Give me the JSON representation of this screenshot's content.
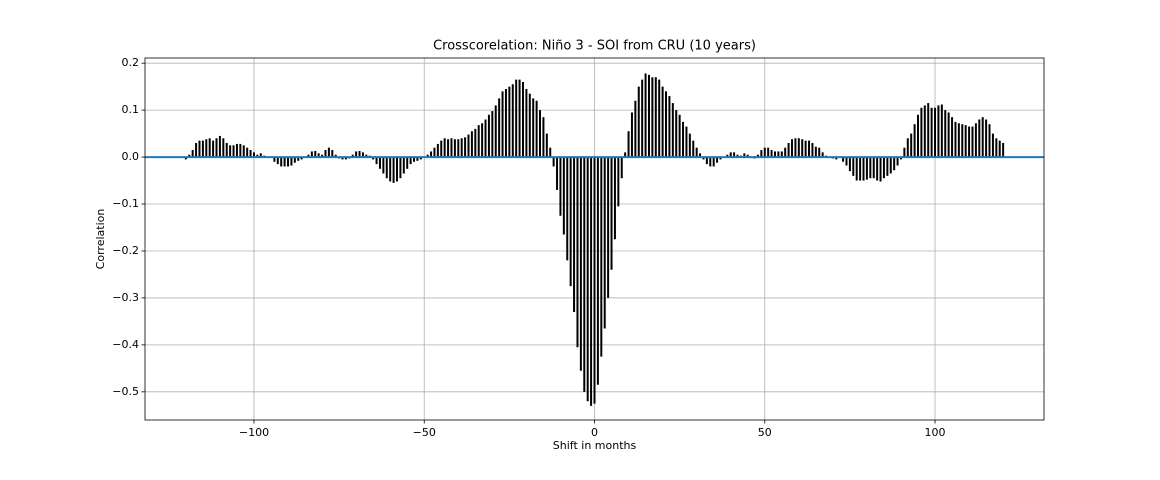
{
  "chart_data": {
    "type": "xcorr",
    "title": "Crosscorelation: Niño 3 - SOI from CRU (10 years)",
    "x_label": "Shift in months",
    "y_label": "Correlation",
    "color": "#000000",
    "baseline_color": "#1f77b4",
    "grid": true,
    "xlim": [
      -132,
      132
    ],
    "ylim": [
      -0.56,
      0.211
    ],
    "xticks": [
      {
        "value": -100,
        "label": "−100"
      },
      {
        "value": -50,
        "label": "−50"
      },
      0,
      50,
      100
    ],
    "yticks": [
      {
        "value": -0.5,
        "label": "−0.5"
      },
      {
        "value": -0.4,
        "label": "−0.4"
      },
      {
        "value": -0.3,
        "label": "−0.3"
      },
      {
        "value": -0.2,
        "label": "−0.2"
      },
      {
        "value": -0.1,
        "label": "−0.1"
      },
      {
        "value": 0,
        "label": "0.0"
      },
      0.1,
      0.2
    ],
    "x": [
      -120,
      -119,
      -118,
      -117,
      -116,
      -115,
      -114,
      -113,
      -112,
      -111,
      -110,
      -109,
      -108,
      -107,
      -106,
      -105,
      -104,
      -103,
      -102,
      -101,
      -100,
      -99,
      -98,
      -97,
      -96,
      -95,
      -94,
      -93,
      -92,
      -91,
      -90,
      -89,
      -88,
      -87,
      -86,
      -85,
      -84,
      -83,
      -82,
      -81,
      -80,
      -79,
      -78,
      -77,
      -76,
      -75,
      -74,
      -73,
      -72,
      -71,
      -70,
      -69,
      -68,
      -67,
      -66,
      -65,
      -64,
      -63,
      -62,
      -61,
      -60,
      -59,
      -58,
      -57,
      -56,
      -55,
      -54,
      -53,
      -52,
      -51,
      -50,
      -49,
      -48,
      -47,
      -46,
      -45,
      -44,
      -43,
      -42,
      -41,
      -40,
      -39,
      -38,
      -37,
      -36,
      -35,
      -34,
      -33,
      -32,
      -31,
      -30,
      -29,
      -28,
      -27,
      -26,
      -25,
      -24,
      -23,
      -22,
      -21,
      -20,
      -19,
      -18,
      -17,
      -16,
      -15,
      -14,
      -13,
      -12,
      -11,
      -10,
      -9,
      -8,
      -7,
      -6,
      -5,
      -4,
      -3,
      -2,
      -1,
      0,
      1,
      2,
      3,
      4,
      5,
      6,
      7,
      8,
      9,
      10,
      11,
      12,
      13,
      14,
      15,
      16,
      17,
      18,
      19,
      20,
      21,
      22,
      23,
      24,
      25,
      26,
      27,
      28,
      29,
      30,
      31,
      32,
      33,
      34,
      35,
      36,
      37,
      38,
      39,
      40,
      41,
      42,
      43,
      44,
      45,
      46,
      47,
      48,
      49,
      50,
      51,
      52,
      53,
      54,
      55,
      56,
      57,
      58,
      59,
      60,
      61,
      62,
      63,
      64,
      65,
      66,
      67,
      68,
      69,
      70,
      71,
      72,
      73,
      74,
      75,
      76,
      77,
      78,
      79,
      80,
      81,
      82,
      83,
      84,
      85,
      86,
      87,
      88,
      89,
      90,
      91,
      92,
      93,
      94,
      95,
      96,
      97,
      98,
      99,
      100,
      101,
      102,
      103,
      104,
      105,
      106,
      107,
      108,
      109,
      110,
      111,
      112,
      113,
      114,
      115,
      116,
      117,
      118,
      119,
      120
    ],
    "values": [
      -0.005,
      0.005,
      0.015,
      0.03,
      0.035,
      0.035,
      0.038,
      0.04,
      0.035,
      0.04,
      0.045,
      0.04,
      0.03,
      0.025,
      0.025,
      0.028,
      0.028,
      0.025,
      0.02,
      0.015,
      0.01,
      0.005,
      0.008,
      0.003,
      0,
      0,
      -0.01,
      -0.015,
      -0.02,
      -0.02,
      -0.02,
      -0.018,
      -0.012,
      -0.008,
      -0.005,
      0,
      0.005,
      0.012,
      0.013,
      0.008,
      0.005,
      0.015,
      0.02,
      0.015,
      0.005,
      -0.003,
      -0.005,
      -0.005,
      -0.003,
      0.005,
      0.012,
      0.013,
      0.01,
      0.005,
      0.003,
      -0.005,
      -0.015,
      -0.025,
      -0.035,
      -0.045,
      -0.052,
      -0.055,
      -0.052,
      -0.045,
      -0.035,
      -0.025,
      -0.015,
      -0.01,
      -0.008,
      -0.005,
      0,
      0.005,
      0.012,
      0.02,
      0.028,
      0.035,
      0.04,
      0.038,
      0.04,
      0.038,
      0.038,
      0.04,
      0.042,
      0.048,
      0.055,
      0.06,
      0.068,
      0.072,
      0.08,
      0.09,
      0.098,
      0.11,
      0.125,
      0.14,
      0.145,
      0.15,
      0.155,
      0.165,
      0.165,
      0.16,
      0.145,
      0.135,
      0.125,
      0.12,
      0.1,
      0.085,
      0.05,
      0.02,
      -0.02,
      -0.07,
      -0.125,
      -0.165,
      -0.22,
      -0.275,
      -0.33,
      -0.405,
      -0.455,
      -0.5,
      -0.52,
      -0.53,
      -0.525,
      -0.485,
      -0.425,
      -0.365,
      -0.3,
      -0.24,
      -0.175,
      -0.105,
      -0.045,
      0.01,
      0.055,
      0.095,
      0.12,
      0.15,
      0.165,
      0.178,
      0.175,
      0.17,
      0.17,
      0.165,
      0.15,
      0.14,
      0.13,
      0.115,
      0.1,
      0.09,
      0.075,
      0.065,
      0.05,
      0.035,
      0.02,
      0.008,
      -0.005,
      -0.015,
      -0.02,
      -0.02,
      -0.012,
      -0.005,
      0,
      0.005,
      0.01,
      0.01,
      0.005,
      0.003,
      0.008,
      0.005,
      0,
      -0.003,
      0.005,
      0.015,
      0.02,
      0.02,
      0.015,
      0.012,
      0.012,
      0.012,
      0.02,
      0.03,
      0.038,
      0.04,
      0.04,
      0.038,
      0.035,
      0.035,
      0.03,
      0.022,
      0.02,
      0.01,
      0.003,
      0,
      -0.003,
      -0.005,
      0,
      -0.01,
      -0.018,
      -0.03,
      -0.04,
      -0.05,
      -0.05,
      -0.05,
      -0.048,
      -0.045,
      -0.045,
      -0.05,
      -0.052,
      -0.045,
      -0.04,
      -0.035,
      -0.028,
      -0.018,
      -0.005,
      0.02,
      0.04,
      0.05,
      0.07,
      0.09,
      0.105,
      0.11,
      0.115,
      0.105,
      0.105,
      0.11,
      0.112,
      0.1,
      0.095,
      0.085,
      0.075,
      0.072,
      0.07,
      0.068,
      0.065,
      0.065,
      0.072,
      0.08,
      0.085,
      0.08,
      0.07,
      0.05,
      0.04,
      0.035,
      0.03
    ]
  }
}
